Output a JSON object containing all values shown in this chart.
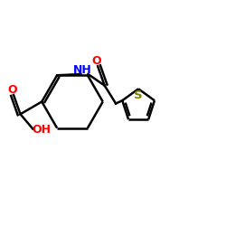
{
  "figsize": [
    2.5,
    2.5
  ],
  "dpi": 100,
  "background": "#ffffff",
  "bond_color": "#000000",
  "red": "#ff0000",
  "blue": "#0000ff",
  "olive": "#808000",
  "lw": 1.8,
  "xlim": [
    0,
    10
  ],
  "ylim": [
    0,
    10
  ]
}
